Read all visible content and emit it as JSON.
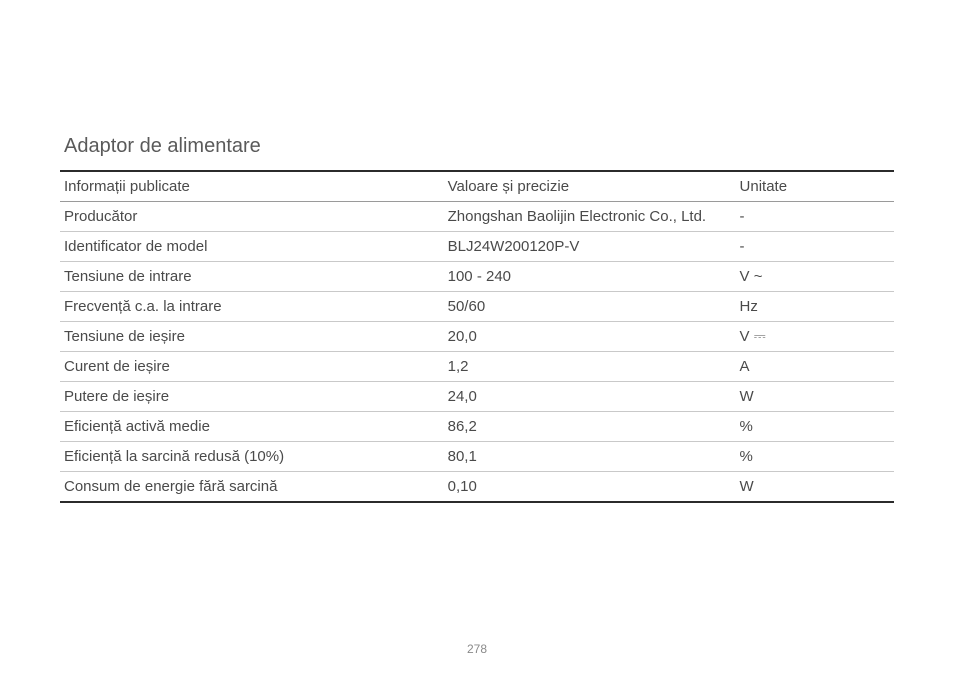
{
  "title": "Adaptor de alimentare",
  "page_number": "278",
  "table": {
    "columns": [
      "Informații publicate",
      "Valoare și precizie",
      "Unitate"
    ],
    "rows": [
      {
        "label": "Producător",
        "value": "Zhongshan Baolijin Electronic Co., Ltd.",
        "unit": "-"
      },
      {
        "label": "Identificator de model",
        "value": "BLJ24W200120P-V",
        "unit": "-"
      },
      {
        "label": "Tensiune de intrare",
        "value": "100 - 240",
        "unit": "V ~"
      },
      {
        "label": "Frecvență c.a. la intrare",
        "value": "50/60",
        "unit": "Hz"
      },
      {
        "label": "Tensiune de ieșire",
        "value": "20,0",
        "unit": "V ⎓"
      },
      {
        "label": "Curent de ieșire",
        "value": "1,2",
        "unit": "A"
      },
      {
        "label": "Putere de ieșire",
        "value": "24,0",
        "unit": "W"
      },
      {
        "label": "Eficiență activă medie",
        "value": "86,2",
        "unit": "%"
      },
      {
        "label": "Eficiență la sarcină redusă (10%)",
        "value": "80,1",
        "unit": "%"
      },
      {
        "label": "Consum de energie fără sarcină",
        "value": "0,10",
        "unit": "W"
      }
    ]
  },
  "style": {
    "text_color": "#4a4a4a",
    "title_color": "#5a5a5a",
    "border_strong": "#2b2b2b",
    "border_row": "#c9c9c9",
    "background": "#ffffff",
    "title_fontsize": 20,
    "body_fontsize": 15,
    "pagenum_fontsize": 12
  }
}
